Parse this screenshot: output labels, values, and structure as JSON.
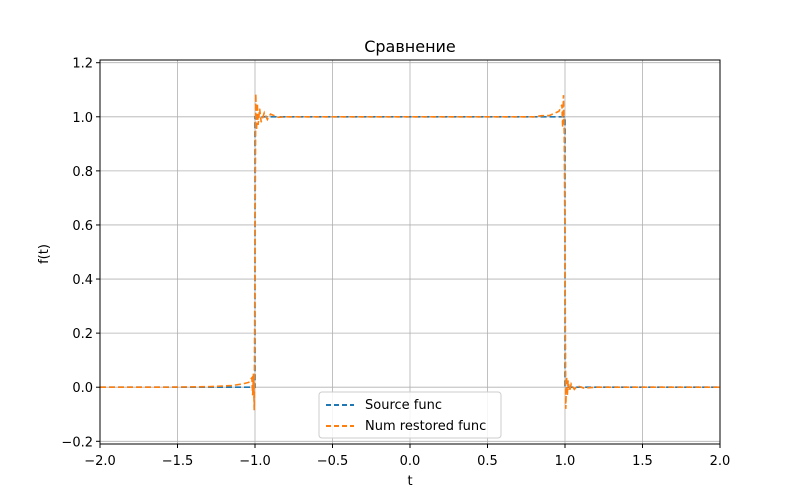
{
  "chart_data": {
    "type": "line",
    "title": "Сравнение",
    "xlabel": "t",
    "ylabel": "f(t)",
    "xlim": [
      -2.0,
      2.0
    ],
    "ylim": [
      -0.21,
      1.21
    ],
    "grid": true,
    "legend_position": "lower center",
    "x_ticks": [
      -2.0,
      -1.5,
      -1.0,
      -0.5,
      0.0,
      0.5,
      1.0,
      1.5,
      2.0
    ],
    "x_tick_labels": [
      "−2.0",
      "−1.5",
      "−1.0",
      "−0.5",
      "0.0",
      "0.5",
      "1.0",
      "1.5",
      "2.0"
    ],
    "y_ticks": [
      -0.2,
      0.0,
      0.2,
      0.4,
      0.6,
      0.8,
      1.0,
      1.2
    ],
    "y_tick_labels": [
      "−0.2",
      "0.0",
      "0.2",
      "0.4",
      "0.6",
      "0.8",
      "1.0",
      "1.2"
    ],
    "series": [
      {
        "name": "Source func",
        "color": "#1f77b4",
        "style": "dashed",
        "x": [
          -2.0,
          -1.0,
          -1.0,
          1.0,
          1.0,
          2.0
        ],
        "y": [
          0.0,
          0.0,
          1.0,
          1.0,
          0.0,
          0.0
        ]
      },
      {
        "name": "Num restored func",
        "color": "#ff7f0e",
        "style": "dashed",
        "x": [
          -2.0,
          -1.6,
          -1.3,
          -1.15,
          -1.08,
          -1.04,
          -1.03,
          -1.02,
          -1.015,
          -1.01,
          -1.005,
          -1.0,
          -0.995,
          -0.99,
          -0.985,
          -0.98,
          -0.97,
          -0.96,
          -0.94,
          -0.92,
          -0.9,
          -0.85,
          -0.8,
          -0.5,
          0.0,
          0.5,
          0.8,
          0.85,
          0.9,
          0.92,
          0.94,
          0.96,
          0.97,
          0.98,
          0.985,
          0.99,
          0.995,
          1.0,
          1.005,
          1.01,
          1.015,
          1.02,
          1.03,
          1.04,
          1.06,
          1.08,
          1.12,
          1.2,
          1.5,
          2.0
        ],
        "y": [
          0.0,
          0.0,
          0.002,
          0.006,
          0.012,
          0.018,
          0.028,
          0.035,
          -0.03,
          0.05,
          -0.085,
          0.5,
          1.085,
          0.95,
          1.05,
          0.97,
          1.03,
          0.98,
          1.015,
          0.99,
          1.01,
          0.998,
          1.0,
          1.0,
          1.0,
          1.0,
          1.0,
          1.004,
          1.005,
          1.01,
          1.015,
          1.02,
          1.03,
          1.045,
          0.96,
          1.08,
          0.94,
          0.5,
          -0.08,
          0.04,
          -0.03,
          0.025,
          -0.015,
          0.012,
          -0.008,
          0.005,
          -0.003,
          0.0,
          0.0,
          0.0
        ]
      }
    ]
  }
}
